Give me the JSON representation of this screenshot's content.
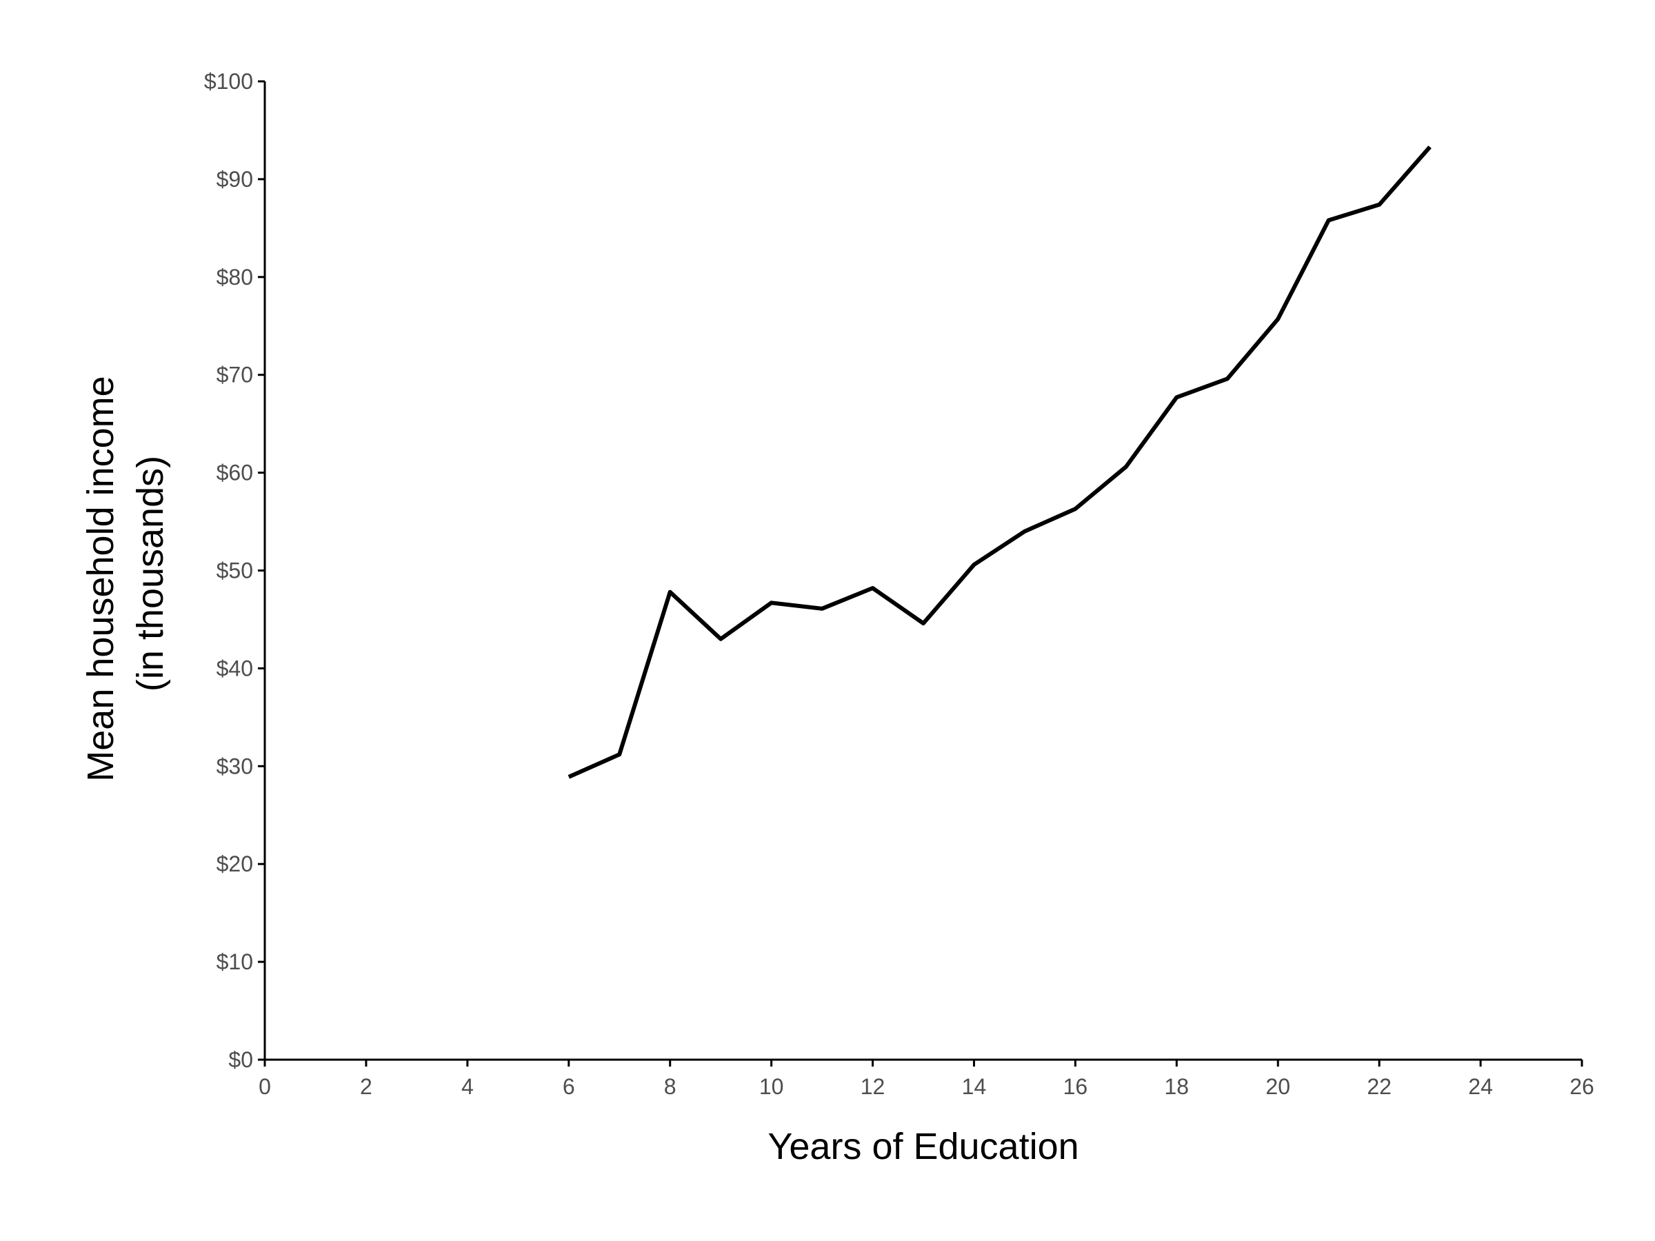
{
  "chart_data": {
    "type": "line",
    "xlabel": "Years of Education",
    "ylabel_lines": [
      "Mean household income",
      "(in thousands)"
    ],
    "xlim": [
      0,
      26
    ],
    "ylim": [
      0,
      100
    ],
    "x_ticks": [
      0,
      2,
      4,
      6,
      8,
      10,
      12,
      14,
      16,
      18,
      20,
      22,
      24,
      26
    ],
    "y_ticks": [
      0,
      10,
      20,
      30,
      40,
      50,
      60,
      70,
      80,
      90,
      100
    ],
    "x_tick_labels": [
      "0",
      "2",
      "4",
      "6",
      "8",
      "10",
      "12",
      "14",
      "16",
      "18",
      "20",
      "22",
      "24",
      "26"
    ],
    "y_tick_labels": [
      "$0",
      "$10",
      "$20",
      "$30",
      "$40",
      "$50",
      "$60",
      "$70",
      "$80",
      "$90",
      "$100"
    ],
    "grid": false,
    "line_color": "#000000",
    "axis_color": "#000000",
    "tick_label_color": "#4d4d4d",
    "series": [
      {
        "x": [
          6,
          7,
          8,
          9,
          10,
          11,
          12,
          13,
          14,
          15,
          16,
          17,
          18,
          19,
          20,
          21,
          22,
          23
        ],
        "y": [
          28.9,
          31.2,
          47.8,
          43.0,
          46.7,
          46.1,
          48.2,
          44.6,
          50.6,
          54.0,
          56.3,
          60.6,
          67.7,
          69.6,
          75.7,
          85.8,
          87.4,
          93.3
        ]
      }
    ]
  }
}
